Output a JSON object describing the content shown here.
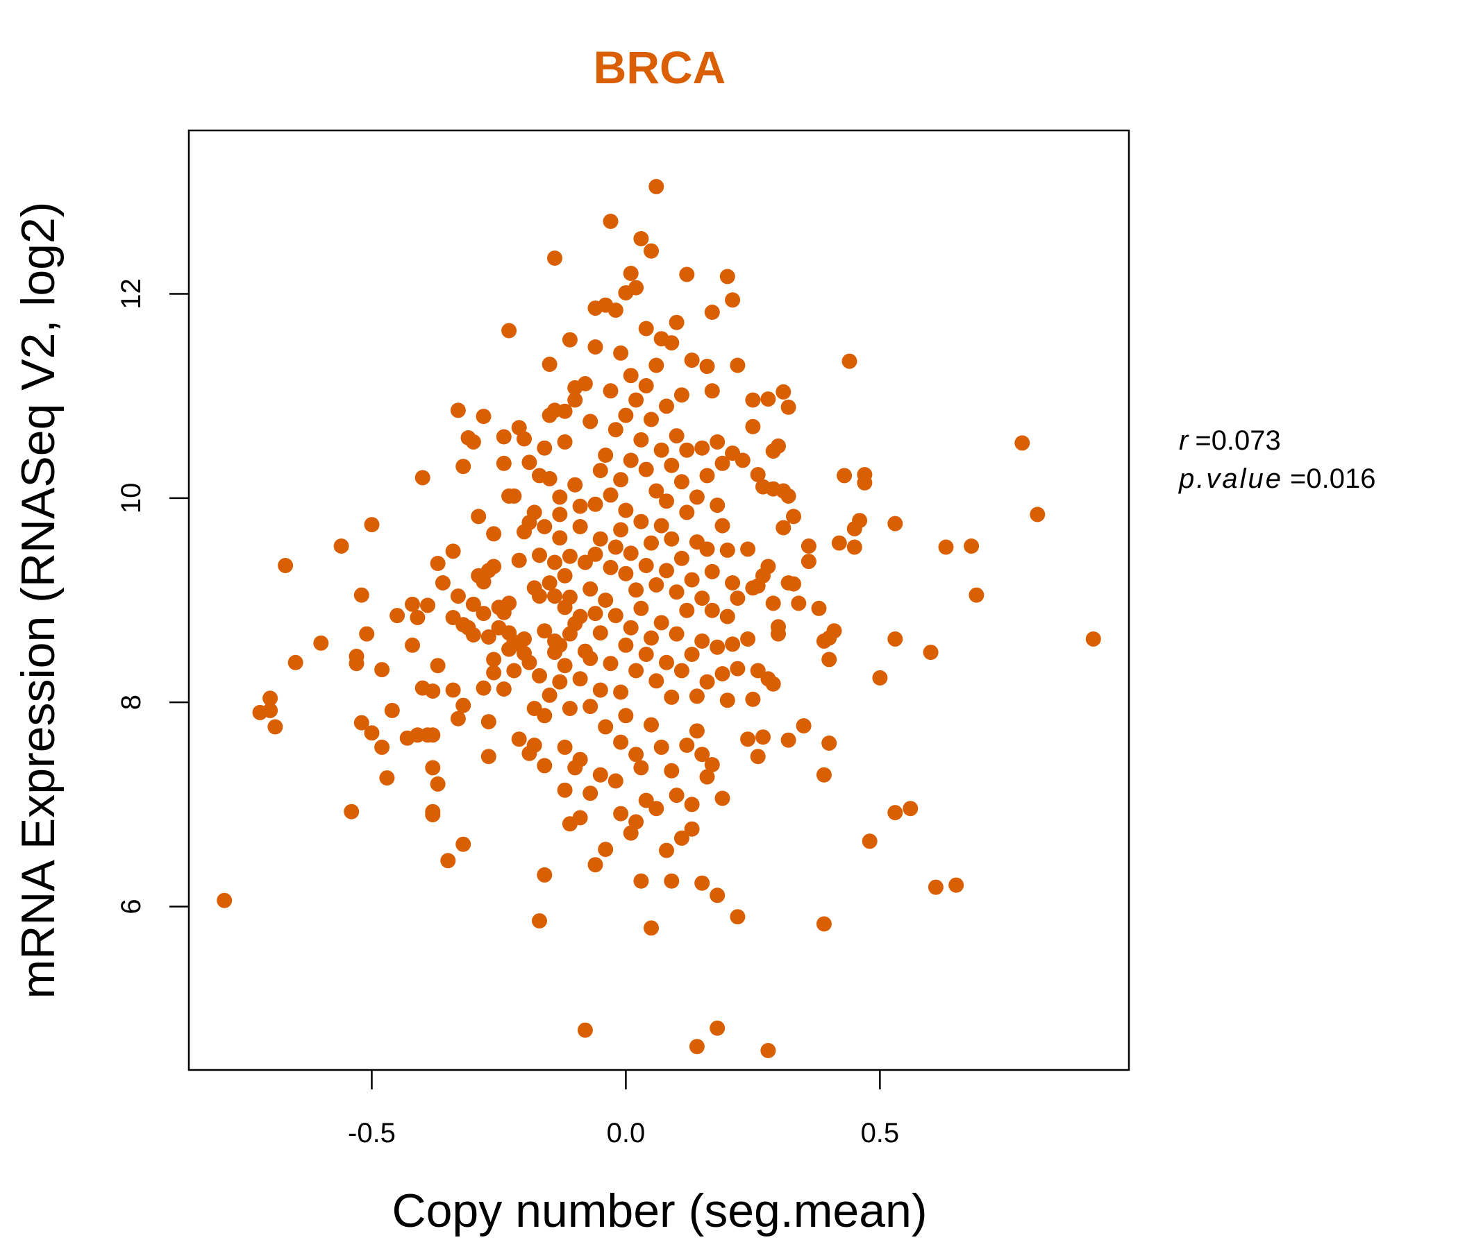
{
  "chart_data": {
    "type": "scatter",
    "title": "BRCA",
    "xlabel": "Copy number (seg.mean)",
    "ylabel": "mRNA Expression (RNASeq V2, log2)",
    "xlim": [
      -0.86,
      0.99
    ],
    "ylim": [
      4.4,
      13.6
    ],
    "xticks": [
      -0.5,
      0.0,
      0.5
    ],
    "xtick_labels": [
      "-0.5",
      "0.0",
      "0.5"
    ],
    "yticks": [
      6,
      8,
      10,
      12
    ],
    "ytick_labels": [
      "6",
      "8",
      "10",
      "12"
    ],
    "grid": false,
    "legend": "none",
    "point_color": "#D95F02",
    "stats": {
      "r_label": "r",
      "r_value": "0.073",
      "p_label": "p.value",
      "p_value": "0.016"
    },
    "points": [
      [
        -0.79,
        6.06
      ],
      [
        -0.72,
        7.9
      ],
      [
        -0.7,
        7.92
      ],
      [
        -0.7,
        8.04
      ],
      [
        -0.69,
        7.76
      ],
      [
        -0.67,
        9.34
      ],
      [
        -0.65,
        8.39
      ],
      [
        -0.6,
        8.58
      ],
      [
        -0.56,
        9.53
      ],
      [
        -0.54,
        6.93
      ],
      [
        -0.53,
        8.38
      ],
      [
        -0.53,
        8.45
      ],
      [
        -0.52,
        9.05
      ],
      [
        -0.52,
        7.8
      ],
      [
        -0.51,
        8.67
      ],
      [
        -0.5,
        9.74
      ],
      [
        -0.5,
        7.7
      ],
      [
        -0.48,
        7.56
      ],
      [
        -0.48,
        8.32
      ],
      [
        -0.47,
        7.26
      ],
      [
        -0.46,
        7.92
      ],
      [
        -0.45,
        8.85
      ],
      [
        -0.43,
        7.65
      ],
      [
        -0.42,
        8.96
      ],
      [
        -0.42,
        8.56
      ],
      [
        -0.41,
        8.83
      ],
      [
        -0.41,
        7.68
      ],
      [
        -0.4,
        10.2
      ],
      [
        -0.4,
        8.14
      ],
      [
        -0.39,
        8.95
      ],
      [
        -0.39,
        7.68
      ],
      [
        -0.38,
        8.11
      ],
      [
        -0.38,
        7.68
      ],
      [
        -0.38,
        6.9
      ],
      [
        -0.38,
        6.93
      ],
      [
        -0.38,
        7.36
      ],
      [
        -0.37,
        7.2
      ],
      [
        -0.37,
        8.36
      ],
      [
        -0.37,
        9.36
      ],
      [
        -0.36,
        9.17
      ],
      [
        -0.35,
        6.45
      ],
      [
        -0.34,
        8.83
      ],
      [
        -0.34,
        9.48
      ],
      [
        -0.34,
        8.12
      ],
      [
        -0.33,
        10.86
      ],
      [
        -0.33,
        7.84
      ],
      [
        -0.33,
        9.04
      ],
      [
        -0.32,
        7.97
      ],
      [
        -0.32,
        8.76
      ],
      [
        -0.32,
        6.61
      ],
      [
        -0.32,
        10.31
      ],
      [
        -0.31,
        10.59
      ],
      [
        -0.31,
        8.73
      ],
      [
        -0.3,
        10.55
      ],
      [
        -0.3,
        8.66
      ],
      [
        -0.3,
        8.96
      ],
      [
        -0.29,
        9.82
      ],
      [
        -0.29,
        9.24
      ],
      [
        -0.28,
        9.18
      ],
      [
        -0.28,
        8.87
      ],
      [
        -0.28,
        10.8
      ],
      [
        -0.28,
        8.14
      ],
      [
        -0.27,
        7.81
      ],
      [
        -0.27,
        7.47
      ],
      [
        -0.27,
        8.64
      ],
      [
        -0.27,
        9.29
      ],
      [
        -0.26,
        9.33
      ],
      [
        -0.26,
        8.42
      ],
      [
        -0.26,
        8.29
      ],
      [
        -0.26,
        9.65
      ],
      [
        -0.25,
        8.93
      ],
      [
        -0.25,
        8.73
      ],
      [
        -0.24,
        8.88
      ],
      [
        -0.24,
        10.6
      ],
      [
        -0.24,
        10.34
      ],
      [
        -0.24,
        8.13
      ],
      [
        -0.23,
        8.68
      ],
      [
        -0.23,
        8.52
      ],
      [
        -0.23,
        10.02
      ],
      [
        -0.23,
        11.64
      ],
      [
        -0.23,
        8.97
      ],
      [
        -0.22,
        10.02
      ],
      [
        -0.22,
        8.31
      ],
      [
        -0.22,
        8.59
      ],
      [
        -0.21,
        10.69
      ],
      [
        -0.21,
        7.64
      ],
      [
        -0.21,
        9.39
      ],
      [
        -0.21,
        8.57
      ],
      [
        -0.2,
        10.58
      ],
      [
        -0.2,
        8.48
      ],
      [
        -0.2,
        9.67
      ],
      [
        -0.2,
        8.62
      ],
      [
        -0.19,
        7.5
      ],
      [
        -0.19,
        8.39
      ],
      [
        -0.19,
        10.35
      ],
      [
        -0.19,
        9.76
      ],
      [
        -0.18,
        7.58
      ],
      [
        -0.18,
        9.12
      ],
      [
        -0.18,
        9.86
      ],
      [
        -0.18,
        7.94
      ],
      [
        -0.17,
        9.44
      ],
      [
        -0.17,
        10.22
      ],
      [
        -0.17,
        8.26
      ],
      [
        -0.17,
        5.86
      ],
      [
        -0.17,
        9.04
      ],
      [
        -0.16,
        7.87
      ],
      [
        -0.16,
        10.49
      ],
      [
        -0.16,
        9.72
      ],
      [
        -0.16,
        8.7
      ],
      [
        -0.16,
        6.31
      ],
      [
        -0.16,
        7.38
      ],
      [
        -0.15,
        10.81
      ],
      [
        -0.15,
        9.17
      ],
      [
        -0.15,
        8.07
      ],
      [
        -0.15,
        10.19
      ],
      [
        -0.15,
        11.31
      ],
      [
        -0.14,
        12.35
      ],
      [
        -0.14,
        8.6
      ],
      [
        -0.14,
        9.04
      ],
      [
        -0.14,
        10.86
      ],
      [
        -0.14,
        9.37
      ],
      [
        -0.14,
        8.49
      ],
      [
        -0.13,
        9.84
      ],
      [
        -0.13,
        10.01
      ],
      [
        -0.13,
        8.56
      ],
      [
        -0.13,
        9.61
      ],
      [
        -0.13,
        8.2
      ],
      [
        -0.12,
        7.56
      ],
      [
        -0.12,
        7.14
      ],
      [
        -0.12,
        8.36
      ],
      [
        -0.12,
        8.93
      ],
      [
        -0.12,
        10.55
      ],
      [
        -0.12,
        9.24
      ],
      [
        -0.12,
        10.85
      ],
      [
        -0.11,
        11.55
      ],
      [
        -0.11,
        7.94
      ],
      [
        -0.11,
        8.67
      ],
      [
        -0.11,
        9.03
      ],
      [
        -0.11,
        6.81
      ],
      [
        -0.11,
        9.43
      ],
      [
        -0.1,
        10.96
      ],
      [
        -0.1,
        7.36
      ],
      [
        -0.1,
        8.77
      ],
      [
        -0.1,
        10.13
      ],
      [
        -0.1,
        11.08
      ],
      [
        -0.09,
        8.23
      ],
      [
        -0.09,
        9.72
      ],
      [
        -0.09,
        6.87
      ],
      [
        -0.09,
        7.44
      ],
      [
        -0.09,
        8.84
      ],
      [
        -0.09,
        9.92
      ],
      [
        -0.08,
        11.12
      ],
      [
        -0.08,
        4.79
      ],
      [
        -0.08,
        8.5
      ],
      [
        -0.08,
        9.37
      ],
      [
        -0.07,
        10.75
      ],
      [
        -0.07,
        9.11
      ],
      [
        -0.07,
        7.96
      ],
      [
        -0.07,
        8.43
      ],
      [
        -0.07,
        7.11
      ],
      [
        -0.06,
        9.45
      ],
      [
        -0.06,
        11.86
      ],
      [
        -0.06,
        6.41
      ],
      [
        -0.06,
        8.87
      ],
      [
        -0.06,
        9.94
      ],
      [
        -0.06,
        11.48
      ],
      [
        -0.05,
        10.27
      ],
      [
        -0.05,
        8.12
      ],
      [
        -0.05,
        7.29
      ],
      [
        -0.05,
        9.6
      ],
      [
        -0.05,
        8.68
      ],
      [
        -0.04,
        11.89
      ],
      [
        -0.04,
        9.0
      ],
      [
        -0.04,
        6.56
      ],
      [
        -0.04,
        10.42
      ],
      [
        -0.04,
        7.76
      ],
      [
        -0.03,
        12.71
      ],
      [
        -0.03,
        9.32
      ],
      [
        -0.03,
        8.38
      ],
      [
        -0.03,
        10.03
      ],
      [
        -0.03,
        11.05
      ],
      [
        -0.02,
        7.23
      ],
      [
        -0.02,
        9.52
      ],
      [
        -0.02,
        8.85
      ],
      [
        -0.02,
        10.67
      ],
      [
        -0.02,
        11.84
      ],
      [
        -0.01,
        11.42
      ],
      [
        -0.01,
        8.1
      ],
      [
        -0.01,
        9.69
      ],
      [
        -0.01,
        7.61
      ],
      [
        -0.01,
        6.91
      ],
      [
        -0.01,
        10.18
      ],
      [
        0.0,
        12.01
      ],
      [
        0.0,
        8.56
      ],
      [
        0.0,
        9.26
      ],
      [
        0.0,
        10.81
      ],
      [
        0.0,
        7.87
      ],
      [
        0.0,
        9.88
      ],
      [
        0.01,
        12.2
      ],
      [
        0.01,
        6.72
      ],
      [
        0.01,
        9.46
      ],
      [
        0.01,
        8.73
      ],
      [
        0.01,
        10.37
      ],
      [
        0.01,
        11.2
      ],
      [
        0.02,
        12.06
      ],
      [
        0.02,
        9.1
      ],
      [
        0.02,
        8.31
      ],
      [
        0.02,
        10.96
      ],
      [
        0.02,
        7.49
      ],
      [
        0.02,
        6.83
      ],
      [
        0.03,
        12.54
      ],
      [
        0.03,
        9.77
      ],
      [
        0.03,
        8.92
      ],
      [
        0.03,
        10.57
      ],
      [
        0.03,
        7.36
      ],
      [
        0.03,
        6.25
      ],
      [
        0.04,
        11.66
      ],
      [
        0.04,
        9.34
      ],
      [
        0.04,
        8.47
      ],
      [
        0.04,
        10.28
      ],
      [
        0.04,
        7.04
      ],
      [
        0.04,
        11.1
      ],
      [
        0.05,
        12.42
      ],
      [
        0.05,
        5.79
      ],
      [
        0.05,
        9.56
      ],
      [
        0.05,
        8.63
      ],
      [
        0.05,
        10.77
      ],
      [
        0.05,
        7.78
      ],
      [
        0.06,
        13.05
      ],
      [
        0.06,
        9.15
      ],
      [
        0.06,
        8.21
      ],
      [
        0.06,
        10.07
      ],
      [
        0.06,
        6.96
      ],
      [
        0.06,
        11.3
      ],
      [
        0.07,
        11.56
      ],
      [
        0.07,
        9.73
      ],
      [
        0.07,
        8.78
      ],
      [
        0.07,
        10.47
      ],
      [
        0.07,
        7.56
      ],
      [
        0.08,
        10.9
      ],
      [
        0.08,
        9.29
      ],
      [
        0.08,
        8.39
      ],
      [
        0.08,
        6.55
      ],
      [
        0.08,
        9.97
      ],
      [
        0.09,
        11.52
      ],
      [
        0.09,
        9.6
      ],
      [
        0.09,
        8.05
      ],
      [
        0.09,
        10.32
      ],
      [
        0.09,
        7.33
      ],
      [
        0.09,
        6.25
      ],
      [
        0.1,
        11.72
      ],
      [
        0.1,
        9.08
      ],
      [
        0.1,
        8.67
      ],
      [
        0.1,
        10.61
      ],
      [
        0.1,
        7.09
      ],
      [
        0.11,
        11.01
      ],
      [
        0.11,
        9.41
      ],
      [
        0.11,
        8.31
      ],
      [
        0.11,
        10.16
      ],
      [
        0.11,
        6.67
      ],
      [
        0.12,
        12.19
      ],
      [
        0.12,
        9.86
      ],
      [
        0.12,
        8.9
      ],
      [
        0.12,
        7.58
      ],
      [
        0.12,
        10.47
      ],
      [
        0.13,
        11.35
      ],
      [
        0.13,
        9.2
      ],
      [
        0.13,
        8.47
      ],
      [
        0.13,
        7.0
      ],
      [
        0.13,
        6.76
      ],
      [
        0.14,
        10.01
      ],
      [
        0.14,
        9.57
      ],
      [
        0.14,
        8.06
      ],
      [
        0.14,
        7.72
      ],
      [
        0.14,
        4.63
      ],
      [
        0.15,
        10.49
      ],
      [
        0.15,
        9.02
      ],
      [
        0.15,
        8.6
      ],
      [
        0.15,
        7.49
      ],
      [
        0.15,
        6.23
      ],
      [
        0.16,
        11.29
      ],
      [
        0.16,
        9.5
      ],
      [
        0.16,
        8.2
      ],
      [
        0.16,
        10.22
      ],
      [
        0.16,
        7.27
      ],
      [
        0.17,
        11.05
      ],
      [
        0.17,
        9.28
      ],
      [
        0.17,
        8.9
      ],
      [
        0.17,
        7.39
      ],
      [
        0.17,
        11.82
      ],
      [
        0.18,
        10.55
      ],
      [
        0.18,
        9.93
      ],
      [
        0.18,
        8.54
      ],
      [
        0.18,
        6.11
      ],
      [
        0.18,
        4.81
      ],
      [
        0.19,
        10.34
      ],
      [
        0.19,
        9.73
      ],
      [
        0.19,
        8.28
      ],
      [
        0.19,
        7.06
      ],
      [
        0.2,
        12.17
      ],
      [
        0.2,
        9.49
      ],
      [
        0.2,
        8.84
      ],
      [
        0.2,
        8.02
      ],
      [
        0.21,
        11.94
      ],
      [
        0.21,
        9.17
      ],
      [
        0.21,
        8.57
      ],
      [
        0.21,
        10.44
      ],
      [
        0.22,
        11.3
      ],
      [
        0.22,
        9.02
      ],
      [
        0.22,
        8.33
      ],
      [
        0.22,
        5.9
      ],
      [
        0.23,
        10.37
      ],
      [
        0.24,
        9.5
      ],
      [
        0.24,
        8.62
      ],
      [
        0.24,
        7.64
      ],
      [
        0.25,
        10.96
      ],
      [
        0.25,
        9.12
      ],
      [
        0.25,
        8.03
      ],
      [
        0.25,
        10.7
      ],
      [
        0.26,
        10.23
      ],
      [
        0.26,
        9.14
      ],
      [
        0.26,
        8.31
      ],
      [
        0.26,
        7.47
      ],
      [
        0.27,
        10.11
      ],
      [
        0.27,
        9.24
      ],
      [
        0.27,
        7.66
      ],
      [
        0.28,
        10.97
      ],
      [
        0.28,
        9.33
      ],
      [
        0.28,
        8.23
      ],
      [
        0.28,
        4.59
      ],
      [
        0.29,
        10.46
      ],
      [
        0.29,
        10.09
      ],
      [
        0.29,
        8.18
      ],
      [
        0.29,
        8.97
      ],
      [
        0.3,
        10.51
      ],
      [
        0.3,
        8.74
      ],
      [
        0.3,
        8.67
      ],
      [
        0.31,
        9.71
      ],
      [
        0.31,
        10.07
      ],
      [
        0.31,
        11.04
      ],
      [
        0.32,
        10.02
      ],
      [
        0.32,
        9.17
      ],
      [
        0.32,
        7.63
      ],
      [
        0.32,
        10.89
      ],
      [
        0.33,
        9.82
      ],
      [
        0.33,
        9.16
      ],
      [
        0.34,
        8.97
      ],
      [
        0.35,
        7.77
      ],
      [
        0.36,
        9.53
      ],
      [
        0.36,
        9.38
      ],
      [
        0.38,
        8.92
      ],
      [
        0.39,
        8.6
      ],
      [
        0.39,
        7.29
      ],
      [
        0.39,
        5.83
      ],
      [
        0.4,
        8.42
      ],
      [
        0.4,
        7.6
      ],
      [
        0.4,
        8.63
      ],
      [
        0.41,
        8.7
      ],
      [
        0.42,
        9.56
      ],
      [
        0.43,
        10.22
      ],
      [
        0.44,
        11.34
      ],
      [
        0.45,
        9.52
      ],
      [
        0.45,
        9.7
      ],
      [
        0.46,
        9.78
      ],
      [
        0.47,
        10.23
      ],
      [
        0.47,
        10.15
      ],
      [
        0.48,
        6.64
      ],
      [
        0.5,
        8.24
      ],
      [
        0.53,
        9.75
      ],
      [
        0.53,
        8.62
      ],
      [
        0.53,
        6.92
      ],
      [
        0.56,
        6.96
      ],
      [
        0.6,
        8.49
      ],
      [
        0.61,
        6.19
      ],
      [
        0.63,
        9.52
      ],
      [
        0.65,
        6.21
      ],
      [
        0.68,
        9.53
      ],
      [
        0.69,
        9.05
      ],
      [
        0.78,
        10.54
      ],
      [
        0.81,
        9.84
      ],
      [
        0.92,
        8.62
      ]
    ]
  }
}
